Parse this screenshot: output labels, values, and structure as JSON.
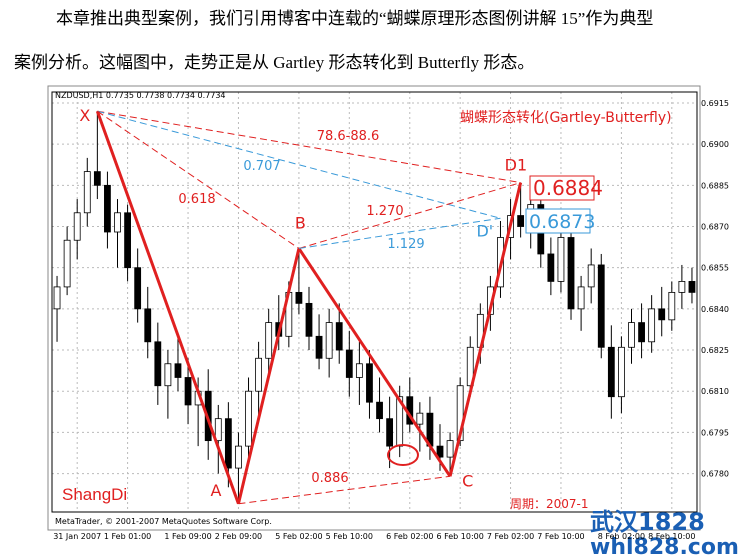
{
  "document": {
    "paragraph": [
      "本章推出典型案例，我们引用博客中连载的“蝴蝶原理形态图例讲解 15”作为典型",
      "案例分析。这幅图中，走势正是从 Gartley 形态转化到 Butterfly 形态。"
    ],
    "watermark": [
      "武汉1828",
      "whl828.com"
    ]
  },
  "chart_data": {
    "type": "candlestick",
    "title": "蝴蝶形态转化(Gartley-Butterfly)",
    "header": "NZDUSD,H1  0.7735 0.7738 0.7734 0.7734",
    "author": "ShangDi",
    "footer": "MetaTrader, © 2001-2007 MetaQuotes Software Corp.",
    "period": "周期：2007-1",
    "ylim": [
      0.6766,
      0.6919
    ],
    "yticks": [
      0.6915,
      {
        "value": 0.69,
        "label": "0.6900"
      },
      0.6885,
      {
        "value": 0.687,
        "label": "0.6870"
      },
      0.6855,
      {
        "value": 0.684,
        "label": "0.6840"
      },
      0.6825,
      {
        "value": 0.681,
        "label": "0.6810"
      },
      0.6795,
      {
        "value": 0.678,
        "label": "0.6780"
      }
    ],
    "grid": true,
    "categories": [
      null,
      null,
      "31 Jan 2007",
      null,
      null,
      null,
      null,
      "1 Feb 01:00",
      null,
      null,
      null,
      null,
      null,
      "1 Feb 09:00",
      null,
      null,
      null,
      null,
      "2 Feb 09:00",
      null,
      null,
      null,
      null,
      null,
      "5 Feb 02:00",
      null,
      null,
      null,
      null,
      "5 Feb 10:00",
      null,
      null,
      null,
      null,
      null,
      "6 Feb 02:00",
      null,
      null,
      null,
      null,
      "6 Feb 10:00",
      null,
      null,
      null,
      null,
      "7 Feb 02:00",
      null,
      null,
      null,
      null,
      "7 Feb 10:00",
      null,
      null,
      null,
      null,
      null,
      "8 Feb 02:00",
      null,
      null,
      null,
      null,
      "8 Feb 10:00",
      null,
      null
    ],
    "open": [
      0.684,
      0.6848,
      0.6865,
      0.6875,
      0.689,
      0.6885,
      0.6868,
      0.6875,
      0.6855,
      0.684,
      0.6828,
      0.6812,
      0.682,
      0.6815,
      0.6805,
      0.681,
      0.6792,
      0.68,
      0.6782,
      0.679,
      0.681,
      0.6822,
      0.6835,
      0.683,
      0.6846,
      0.6842,
      0.683,
      0.6822,
      0.6835,
      0.6825,
      0.6815,
      0.682,
      0.6806,
      0.68,
      0.679,
      0.6808,
      0.6798,
      0.6802,
      0.679,
      0.6786,
      0.6792,
      0.6812,
      0.6826,
      0.6838,
      0.6848,
      0.6866,
      0.6874,
      0.687,
      0.6878,
      0.686,
      0.685,
      0.6866,
      0.684,
      0.6848,
      0.6856,
      0.6826,
      0.6808,
      0.6826,
      0.6835,
      0.6828,
      0.684,
      0.6836,
      0.6846,
      0.685
    ],
    "high": [
      0.6852,
      0.687,
      0.688,
      0.6895,
      0.6912,
      0.689,
      0.688,
      0.6878,
      0.6862,
      0.6848,
      0.6835,
      0.6825,
      0.683,
      0.6822,
      0.6815,
      0.6818,
      0.6805,
      0.6806,
      0.6795,
      0.6815,
      0.6828,
      0.684,
      0.6845,
      0.685,
      0.6862,
      0.6848,
      0.6838,
      0.684,
      0.6842,
      0.6832,
      0.6828,
      0.6825,
      0.6815,
      0.6808,
      0.6812,
      0.6815,
      0.6806,
      0.6808,
      0.6798,
      0.6795,
      0.6815,
      0.683,
      0.6842,
      0.6852,
      0.6872,
      0.688,
      0.6886,
      0.6884,
      0.6882,
      0.6866,
      0.6872,
      0.687,
      0.6852,
      0.6862,
      0.686,
      0.6834,
      0.683,
      0.684,
      0.6842,
      0.6845,
      0.6848,
      0.685,
      0.6856,
      0.6855
    ],
    "low": [
      0.6828,
      0.6845,
      0.6858,
      0.687,
      0.688,
      0.6862,
      0.6855,
      0.685,
      0.6835,
      0.6822,
      0.6805,
      0.68,
      0.681,
      0.6798,
      0.679,
      0.6785,
      0.678,
      0.6775,
      0.6769,
      0.6785,
      0.68,
      0.6815,
      0.6825,
      0.6826,
      0.6838,
      0.6825,
      0.6818,
      0.6815,
      0.682,
      0.6808,
      0.6805,
      0.68,
      0.6795,
      0.6782,
      0.6786,
      0.6795,
      0.6788,
      0.6785,
      0.6781,
      0.6779,
      0.679,
      0.6808,
      0.682,
      0.6832,
      0.6844,
      0.6858,
      0.6866,
      0.6862,
      0.6855,
      0.6845,
      0.6846,
      0.6836,
      0.6832,
      0.6842,
      0.6822,
      0.68,
      0.6802,
      0.682,
      0.6822,
      0.6824,
      0.683,
      0.6832,
      0.684,
      0.6842
    ],
    "close": [
      0.6848,
      0.6865,
      0.6875,
      0.689,
      0.6885,
      0.6868,
      0.6875,
      0.6855,
      0.684,
      0.6828,
      0.6812,
      0.682,
      0.6815,
      0.6805,
      0.681,
      0.6792,
      0.68,
      0.6782,
      0.679,
      0.681,
      0.6822,
      0.6835,
      0.683,
      0.6846,
      0.6842,
      0.683,
      0.6822,
      0.6835,
      0.6825,
      0.6815,
      0.682,
      0.6806,
      0.68,
      0.679,
      0.6808,
      0.6798,
      0.6802,
      0.679,
      0.6786,
      0.6792,
      0.6812,
      0.6826,
      0.6838,
      0.6848,
      0.6866,
      0.6874,
      0.687,
      0.6878,
      0.686,
      0.685,
      0.6866,
      0.684,
      0.6848,
      0.6856,
      0.6826,
      0.6808,
      0.6826,
      0.6835,
      0.6828,
      0.684,
      0.6836,
      0.6846,
      0.685,
      0.6846
    ],
    "pattern": [
      {
        "label": "X",
        "value": 0.6912
      },
      {
        "label": "A",
        "value": 0.6769
      },
      {
        "label": "B",
        "value": 0.6862
      },
      {
        "label": "C",
        "value": 0.6779
      },
      {
        "label": "D1",
        "value": 0.6886
      },
      {
        "label": "D'",
        "value": 0.6873
      }
    ],
    "ratios": [
      "78.6-88.6",
      "0.707",
      "0.618",
      "1.270",
      "1.129",
      "0.886"
    ],
    "price_boxes": [
      "0.6884",
      "0.6873"
    ]
  }
}
